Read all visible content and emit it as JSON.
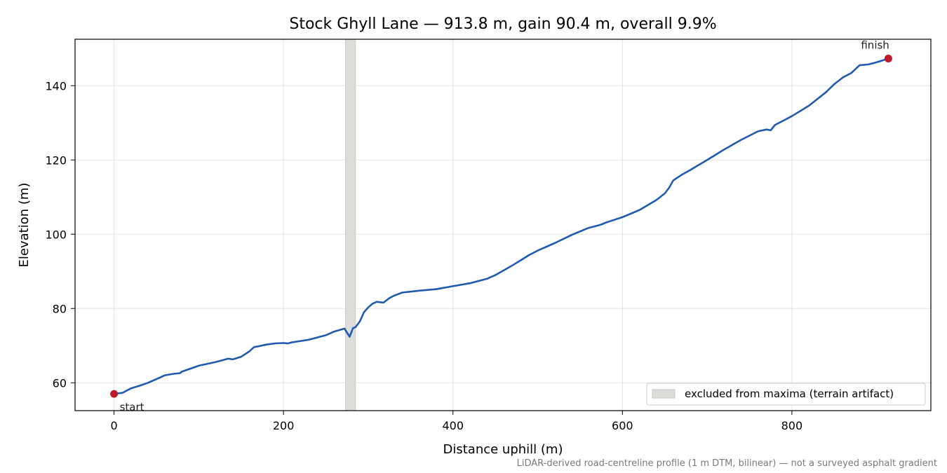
{
  "chart_data": {
    "type": "line",
    "title": "Stock Ghyll Lane — 913.8 m, gain 90.4 m, overall 9.9%",
    "xlabel": "Distance uphill (m)",
    "ylabel": "Elevation (m)",
    "xlim": [
      -46,
      964
    ],
    "ylim": [
      52.5,
      152.5
    ],
    "xticks": [
      0,
      200,
      400,
      600,
      800
    ],
    "yticks": [
      60,
      80,
      100,
      120,
      140
    ],
    "grid": true,
    "legend_position": "lower-right",
    "series": [
      {
        "color": "#1f5bb0",
        "x": [
          0,
          10,
          20,
          30,
          40,
          50,
          60,
          70,
          78,
          80,
          100,
          120,
          135,
          140,
          150,
          160,
          165,
          170,
          180,
          190,
          200,
          205,
          210,
          230,
          250,
          260,
          272,
          278,
          282,
          285,
          290,
          295,
          300,
          305,
          310,
          318,
          322,
          325,
          330,
          340,
          360,
          380,
          400,
          420,
          440,
          450,
          460,
          470,
          480,
          490,
          500,
          520,
          540,
          560,
          570,
          575,
          580,
          600,
          620,
          640,
          650,
          655,
          660,
          670,
          680,
          700,
          720,
          740,
          760,
          770,
          775,
          780,
          790,
          800,
          820,
          840,
          850,
          860,
          870,
          880,
          890,
          900,
          913.8
        ],
        "y": [
          57.0,
          57.3,
          58.5,
          59.2,
          60.0,
          61.0,
          62.0,
          62.4,
          62.6,
          63.0,
          64.6,
          65.6,
          66.5,
          66.3,
          67.0,
          68.5,
          69.6,
          69.8,
          70.3,
          70.6,
          70.7,
          70.6,
          70.9,
          71.6,
          72.8,
          73.8,
          74.6,
          72.4,
          74.7,
          75.0,
          76.5,
          79.0,
          80.3,
          81.3,
          81.8,
          81.6,
          82.3,
          82.8,
          83.4,
          84.3,
          84.8,
          85.2,
          86.0,
          86.8,
          88.0,
          89.0,
          90.3,
          91.6,
          93.0,
          94.4,
          95.6,
          97.6,
          99.8,
          101.7,
          102.3,
          102.6,
          103.1,
          104.6,
          106.5,
          109.2,
          111.0,
          112.5,
          114.5,
          116.0,
          117.3,
          120.0,
          122.8,
          125.4,
          127.7,
          128.2,
          128.0,
          129.4,
          130.6,
          131.8,
          134.6,
          138.2,
          140.4,
          142.2,
          143.4,
          145.5,
          145.7,
          146.3,
          147.3
        ]
      }
    ],
    "excluded_band": {
      "x": [
        273,
        285
      ],
      "color": "#dcdcd8",
      "legend": "excluded from maxima (terrain artifact)"
    },
    "markers": [
      {
        "label": "start",
        "x": 0,
        "y": 57.0,
        "color": "#c0192a"
      },
      {
        "label": "finish",
        "x": 913.8,
        "y": 147.3,
        "color": "#c0192a"
      }
    ],
    "footnote": "LiDAR-derived road-centreline profile (1 m DTM, bilinear) — not a surveyed asphalt gradient"
  }
}
